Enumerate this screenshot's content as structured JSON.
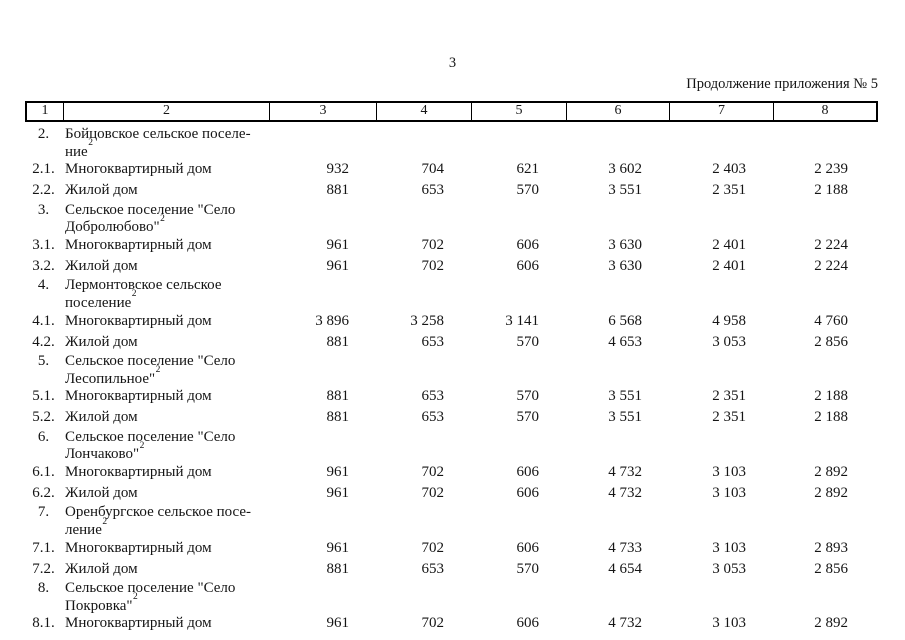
{
  "page": {
    "number": "3",
    "continuation_label": "Продолжение приложения № 5"
  },
  "table": {
    "columns": [
      "1",
      "2",
      "3",
      "4",
      "5",
      "6",
      "7",
      "8"
    ],
    "rows": [
      {
        "type": "group",
        "num": "2.",
        "lines": [
          "Бойцовское сельское поселе-",
          "ние"
        ],
        "sup": "2"
      },
      {
        "type": "item",
        "num": "2.1.",
        "name": "Многоквартирный дом",
        "values": [
          "932",
          "704",
          "621",
          "3 602",
          "2 403",
          "2 239"
        ]
      },
      {
        "type": "item",
        "num": "2.2.",
        "name": "Жилой дом",
        "values": [
          "881",
          "653",
          "570",
          "3 551",
          "2 351",
          "2 188"
        ]
      },
      {
        "type": "group",
        "num": "3.",
        "lines": [
          "Сельское поселение \"Село",
          "Добролюбово\""
        ],
        "sup": "2"
      },
      {
        "type": "item",
        "num": "3.1.",
        "name": "Многоквартирный дом",
        "values": [
          "961",
          "702",
          "606",
          "3 630",
          "2 401",
          "2 224"
        ]
      },
      {
        "type": "item",
        "num": "3.2.",
        "name": "Жилой дом",
        "values": [
          "961",
          "702",
          "606",
          "3 630",
          "2 401",
          "2 224"
        ]
      },
      {
        "type": "group",
        "num": "4.",
        "lines": [
          "Лермонтовское сельское",
          "поселение"
        ],
        "sup": "2"
      },
      {
        "type": "item",
        "num": "4.1.",
        "name": "Многоквартирный дом",
        "values": [
          "3 896",
          "3 258",
          "3 141",
          "6 568",
          "4 958",
          "4 760"
        ]
      },
      {
        "type": "item",
        "num": "4.2.",
        "name": "Жилой дом",
        "values": [
          "881",
          "653",
          "570",
          "4 653",
          "3 053",
          "2 856"
        ]
      },
      {
        "type": "group",
        "num": "5.",
        "lines": [
          "Сельское поселение \"Село",
          "Лесопильное\""
        ],
        "sup": "2"
      },
      {
        "type": "item",
        "num": "5.1.",
        "name": "Многоквартирный дом",
        "values": [
          "881",
          "653",
          "570",
          "3 551",
          "2 351",
          "2 188"
        ]
      },
      {
        "type": "item",
        "num": "5.2.",
        "name": "Жилой дом",
        "values": [
          "881",
          "653",
          "570",
          "3 551",
          "2 351",
          "2 188"
        ]
      },
      {
        "type": "group",
        "num": "6.",
        "lines": [
          "Сельское поселение \"Село",
          "Лончаково\""
        ],
        "sup": "2"
      },
      {
        "type": "item",
        "num": "6.1.",
        "name": "Многоквартирный дом",
        "values": [
          "961",
          "702",
          "606",
          "4 732",
          "3 103",
          "2 892"
        ]
      },
      {
        "type": "item",
        "num": "6.2.",
        "name": "Жилой дом",
        "values": [
          "961",
          "702",
          "606",
          "4 732",
          "3 103",
          "2 892"
        ]
      },
      {
        "type": "group",
        "num": "7.",
        "lines": [
          "Оренбургское сельское посе-",
          "ление"
        ],
        "sup": "2"
      },
      {
        "type": "item",
        "num": "7.1.",
        "name": "Многоквартирный дом",
        "values": [
          "961",
          "702",
          "606",
          "4 733",
          "3 103",
          "2 893"
        ]
      },
      {
        "type": "item",
        "num": "7.2.",
        "name": "Жилой дом",
        "values": [
          "881",
          "653",
          "570",
          "4 654",
          "3 053",
          "2 856"
        ]
      },
      {
        "type": "group",
        "num": "8.",
        "lines": [
          "Сельское поселение \"Село",
          "Покровка\""
        ],
        "sup": "2"
      },
      {
        "type": "item",
        "num": "8.1.",
        "name": "Многоквартирный дом",
        "values": [
          "961",
          "702",
          "606",
          "4 732",
          "3 103",
          "2 892"
        ]
      }
    ]
  }
}
